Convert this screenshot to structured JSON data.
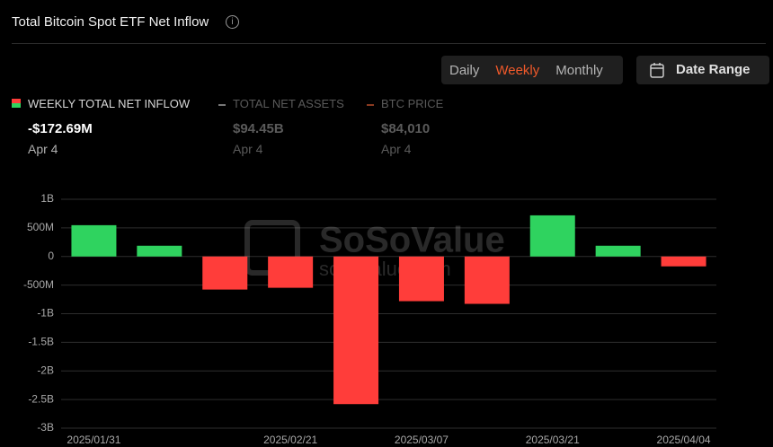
{
  "header": {
    "title": "Total Bitcoin Spot ETF Net Inflow"
  },
  "tabs": [
    "Daily",
    "Weekly",
    "Monthly"
  ],
  "date_range": "Date Range",
  "legend": [
    {
      "name": "WEEKLY TOTAL NET INFLOW",
      "value": "-$172.69M",
      "date": "Apr 4"
    },
    {
      "name": "TOTAL NET ASSETS",
      "value": "$94.45B",
      "date": "Apr 4"
    },
    {
      "name": "BTC PRICE",
      "value": "$84,010",
      "date": "Apr 4"
    }
  ],
  "watermark": {
    "brand": "SoSoValue",
    "url": "sosovalue.com"
  },
  "chart_data": {
    "type": "bar",
    "categories": [
      "2025/01/31",
      null,
      null,
      "2025/02/21",
      null,
      "2025/03/07",
      null,
      "2025/03/21",
      null,
      "2025/04/04"
    ],
    "values": [
      547000000,
      188000000,
      -578000000,
      -547000000,
      -2580000000,
      -781000000,
      -828000000,
      719000000,
      188000000,
      -172690000
    ],
    "positive_color": "#2fd35f",
    "negative_color": "#ff3d3a",
    "ylim": [
      -3000000000,
      1000000000
    ],
    "yticks": [
      {
        "value": 1000000000,
        "label": "1B"
      },
      {
        "value": 500000000,
        "label": "500M"
      },
      0,
      {
        "value": -500000000,
        "label": "-500M"
      },
      {
        "value": -1000000000,
        "label": "-1B"
      },
      {
        "value": -1500000000,
        "label": "-1.5B"
      },
      {
        "value": -2000000000,
        "label": "-2B"
      },
      {
        "value": -2500000000,
        "label": "-2.5B"
      },
      {
        "value": -3000000000,
        "label": "-3B"
      }
    ],
    "grid": true
  }
}
